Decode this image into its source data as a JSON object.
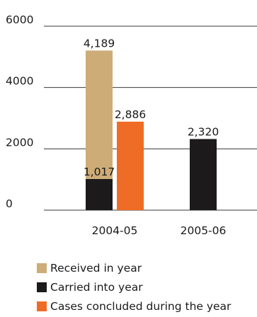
{
  "chart_data": {
    "type": "bar",
    "title": "",
    "xlabel": "",
    "ylabel": "",
    "ylim": [
      0,
      6000
    ],
    "yticks": [
      0,
      2000,
      4000,
      6000
    ],
    "ytick_labels": [
      "0",
      "2000",
      "4000",
      "6000"
    ],
    "grid": "horizontal",
    "legend_position": "bottom",
    "categories": [
      "2004-05",
      "2005-06"
    ],
    "series": [
      {
        "name": "Received in year",
        "color": "#cdac78",
        "stack": "a",
        "values": [
          4189,
          null
        ],
        "labels": [
          "4,189",
          null
        ]
      },
      {
        "name": "Carried into year",
        "color": "#1c1a1b",
        "stack": "a",
        "values": [
          1017,
          2320
        ],
        "labels": [
          "1,017",
          "2,320"
        ]
      },
      {
        "name": "Cases concluded during the year",
        "color": "#ee6c25",
        "stack": "b",
        "values": [
          2886,
          null
        ],
        "labels": [
          "2,886",
          null
        ]
      }
    ]
  }
}
